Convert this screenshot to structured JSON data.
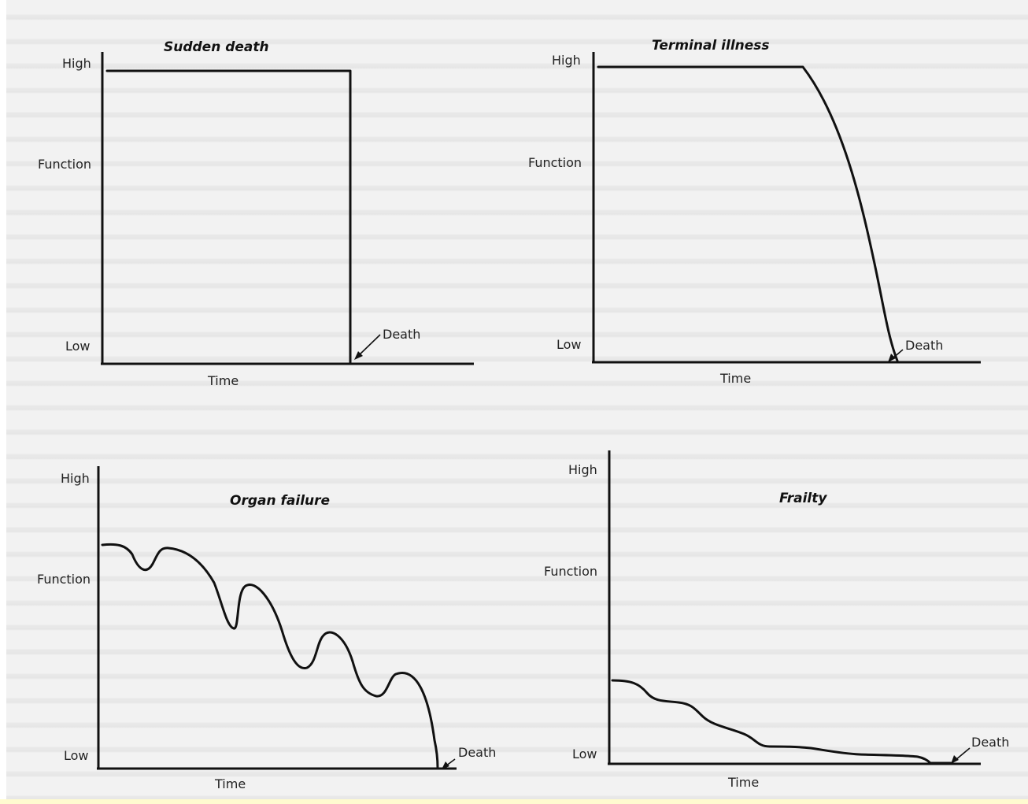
{
  "panels": [
    {
      "title": "Sudden death",
      "y_high": "High",
      "y_mid": "Function",
      "y_low": "Low",
      "x_label": "Time",
      "end_label": "Death"
    },
    {
      "title": "Terminal illness",
      "y_high": "High",
      "y_mid": "Function",
      "y_low": "Low",
      "x_label": "Time",
      "end_label": "Death"
    },
    {
      "title": "Organ failure",
      "y_high": "High",
      "y_mid": "Function",
      "y_low": "Low",
      "x_label": "Time",
      "end_label": "Death"
    },
    {
      "title": "Frailty",
      "y_high": "High",
      "y_mid": "Function",
      "y_low": "Low",
      "x_label": "Time",
      "end_label": "Death"
    }
  ]
}
